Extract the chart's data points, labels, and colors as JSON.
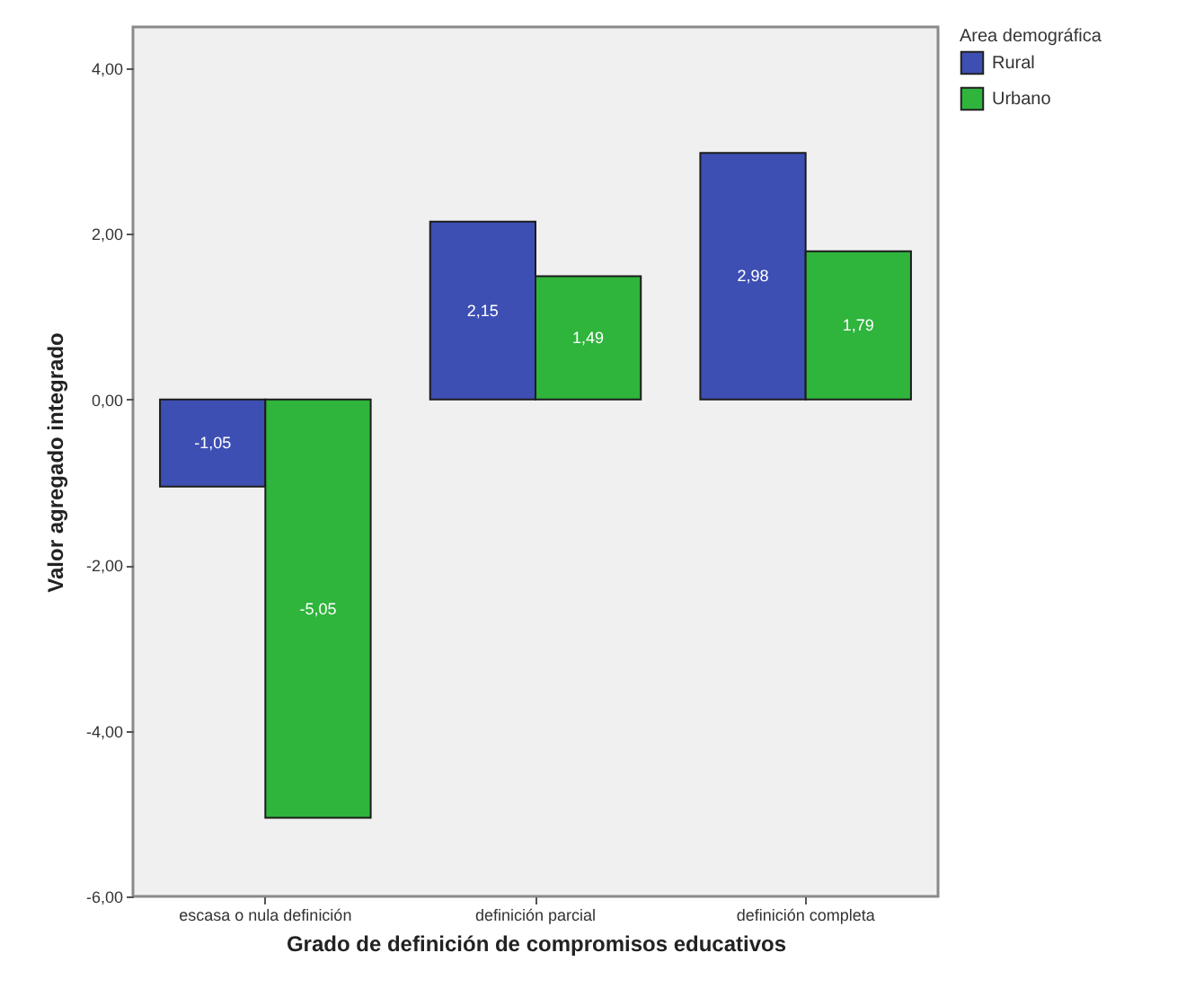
{
  "chart_data": {
    "type": "bar",
    "xlabel": "Grado de definición de compromisos educativos",
    "ylabel": "Valor agregado integrado",
    "legend_title": "Area demográfica",
    "categories": [
      "escasa o nula definición",
      "definición parcial",
      "definición completa"
    ],
    "series": [
      {
        "name": "Rural",
        "color": "#3d4fb3",
        "values": [
          -1.05,
          2.15,
          2.98
        ],
        "value_labels": [
          "-1,05",
          "2,15",
          "2,98"
        ]
      },
      {
        "name": "Urbano",
        "color": "#2fb43c",
        "values": [
          -5.05,
          1.49,
          1.79
        ],
        "value_labels": [
          "-5,05",
          "1,49",
          "1,79"
        ]
      }
    ],
    "ylim": [
      -6,
      4.5
    ],
    "yticks": [
      {
        "value": -6,
        "label": "-6,00"
      },
      {
        "value": -4,
        "label": "-4,00"
      },
      {
        "value": -2,
        "label": "-2,00"
      },
      {
        "value": 0,
        "label": "0,00"
      },
      {
        "value": 2,
        "label": "2,00"
      },
      {
        "value": 4,
        "label": "4,00"
      }
    ],
    "grid": false,
    "legend": "top right"
  }
}
